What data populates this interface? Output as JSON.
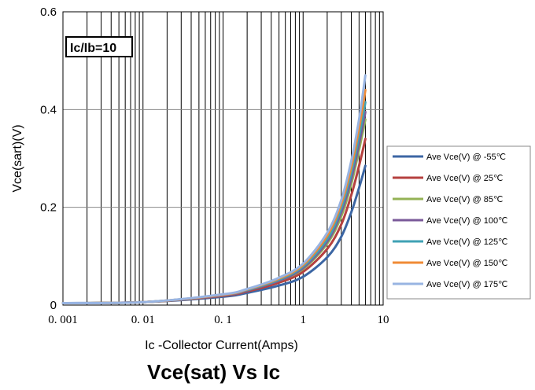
{
  "chart_data": {
    "type": "line",
    "title": "Vce(sat) Vs Ic",
    "xlabel": "Ic -Collector Current(Amps)",
    "ylabel": "Vce(sart)(V)",
    "x_scale": "log",
    "xlim": [
      0.001,
      10
    ],
    "ylim": [
      0,
      0.6
    ],
    "x_ticks": [
      0.001,
      0.01,
      0.1,
      1,
      10
    ],
    "x_tick_labels": [
      "0. 001",
      "0. 01",
      "0. 1",
      "1",
      "10"
    ],
    "y_ticks": [
      0,
      0.2,
      0.4,
      0.6
    ],
    "y_tick_labels": [
      "0",
      "0.2",
      "0.4",
      "0.6"
    ],
    "grid": true,
    "legend_position": "right",
    "annotation": "Ic/Ib=10",
    "x": [
      0.001,
      0.01,
      0.1,
      0.2,
      0.5,
      1,
      2,
      3,
      4,
      5,
      6
    ],
    "series": [
      {
        "name": "Ave Vce(V) @ -55℃",
        "color": "#3c66a4",
        "values": [
          0.004,
          0.006,
          0.017,
          0.025,
          0.04,
          0.058,
          0.098,
          0.14,
          0.19,
          0.24,
          0.285
        ]
      },
      {
        "name": "Ave Vce(V) @ 25℃",
        "color": "#b5413f",
        "values": [
          0.004,
          0.006,
          0.019,
          0.028,
          0.046,
          0.068,
          0.115,
          0.165,
          0.225,
          0.285,
          0.34
        ]
      },
      {
        "name": "Ave Vce(V) @ 85℃",
        "color": "#94b255",
        "values": [
          0.004,
          0.006,
          0.02,
          0.03,
          0.05,
          0.074,
          0.126,
          0.182,
          0.248,
          0.318,
          0.38
        ]
      },
      {
        "name": "Ave Vce(V) @ 100℃",
        "color": "#7a5a9a",
        "values": [
          0.004,
          0.006,
          0.02,
          0.03,
          0.05,
          0.076,
          0.13,
          0.19,
          0.258,
          0.33,
          0.395
        ]
      },
      {
        "name": "Ave Vce(V) @ 125℃",
        "color": "#3fa1b4",
        "values": [
          0.004,
          0.006,
          0.021,
          0.031,
          0.052,
          0.079,
          0.135,
          0.198,
          0.27,
          0.345,
          0.415
        ]
      },
      {
        "name": "Ave Vce(V) @ 150℃",
        "color": "#f08b36",
        "values": [
          0.004,
          0.006,
          0.021,
          0.032,
          0.054,
          0.082,
          0.142,
          0.207,
          0.282,
          0.362,
          0.44
        ]
      },
      {
        "name": "Ave Vce(V) @ 175℃",
        "color": "#98b4e2",
        "values": [
          0.004,
          0.006,
          0.022,
          0.033,
          0.056,
          0.085,
          0.148,
          0.215,
          0.295,
          0.38,
          0.47
        ]
      }
    ]
  }
}
